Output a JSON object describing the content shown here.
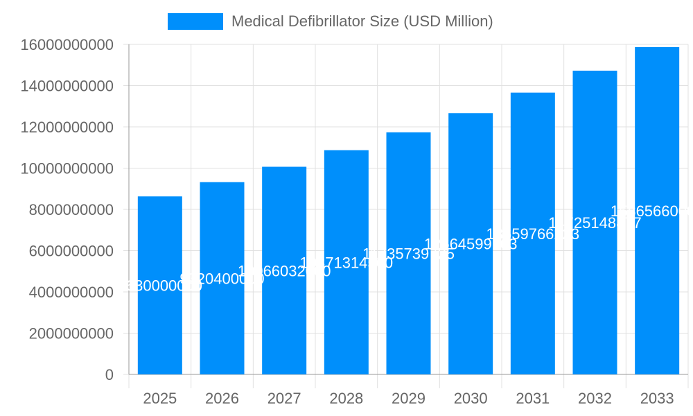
{
  "chart_data": {
    "type": "bar",
    "categories": [
      "2025",
      "2026",
      "2027",
      "2028",
      "2029",
      "2030",
      "2031",
      "2032",
      "2033"
    ],
    "series": [
      {
        "name": "Medical Defibrillator Size (USD Million)",
        "values": [
          8630000000,
          9320400000,
          10066032000,
          10871314560,
          11735739725,
          12664599103,
          13659766223,
          14725148877,
          15865660000
        ],
        "data_labels": [
          "8630000000",
          "9320400000",
          "10066032000",
          "10871314560",
          "11735739725",
          "12664599103",
          "13659766223",
          "14725148877",
          "15865660000"
        ]
      }
    ],
    "ylim": [
      0,
      16000000000
    ],
    "yticks": [
      "0",
      "2000000000",
      "4000000000",
      "6000000000",
      "8000000000",
      "10000000000",
      "12000000000",
      "14000000000",
      "16000000000"
    ],
    "grid": true,
    "legend_position": "top",
    "colors": {
      "bar": "#008FFB",
      "grid": "#e0e0e0",
      "axis": "#999999",
      "text": "#666666",
      "data_label": "#ffffff"
    }
  }
}
